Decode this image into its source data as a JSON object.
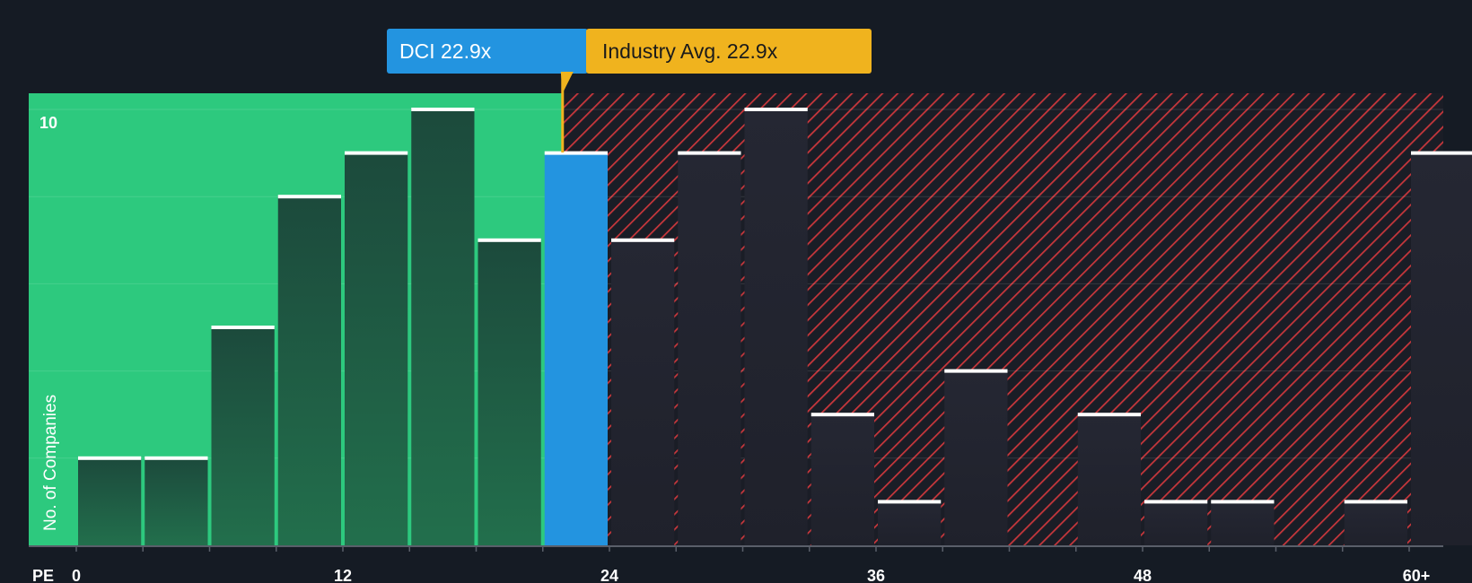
{
  "chart_data": {
    "type": "bar",
    "xlabel": "PE",
    "ylabel": "No. of Companies",
    "x_ticks": [
      "0",
      "12",
      "24",
      "36",
      "48",
      "60+"
    ],
    "y_ticks": [
      "10"
    ],
    "ylim": [
      0,
      10
    ],
    "bins": [
      {
        "start": 0,
        "end": 3,
        "count": 2
      },
      {
        "start": 3,
        "end": 6,
        "count": 2
      },
      {
        "start": 6,
        "end": 9,
        "count": 5
      },
      {
        "start": 9,
        "end": 12,
        "count": 8
      },
      {
        "start": 12,
        "end": 15,
        "count": 9
      },
      {
        "start": 15,
        "end": 18,
        "count": 10
      },
      {
        "start": 18,
        "end": 21,
        "count": 7
      },
      {
        "start": 21,
        "end": 24,
        "count": 9,
        "highlight": true
      },
      {
        "start": 24,
        "end": 27,
        "count": 7
      },
      {
        "start": 27,
        "end": 30,
        "count": 9
      },
      {
        "start": 30,
        "end": 33,
        "count": 10
      },
      {
        "start": 33,
        "end": 36,
        "count": 3
      },
      {
        "start": 36,
        "end": 39,
        "count": 1
      },
      {
        "start": 39,
        "end": 42,
        "count": 4
      },
      {
        "start": 42,
        "end": 45,
        "count": 0
      },
      {
        "start": 45,
        "end": 48,
        "count": 3
      },
      {
        "start": 48,
        "end": 51,
        "count": 1
      },
      {
        "start": 51,
        "end": 54,
        "count": 1
      },
      {
        "start": 54,
        "end": 57,
        "count": 0
      },
      {
        "start": 57,
        "end": 60,
        "count": 1
      },
      {
        "start": 60,
        "end": 63,
        "count": 9
      }
    ],
    "company": {
      "label": "DCI 22.9x",
      "value": 22.9
    },
    "industry_avg": {
      "label": "Industry Avg. 22.9x",
      "value": 22.9
    },
    "colors": {
      "background": "#151b24",
      "undervalued_zone": "#2dc97e",
      "overvalued_hatch": "#c8373c",
      "bar_in_zone": "#1f6b4a",
      "bar_in_hatch": "#222530",
      "company_bar": "#2394e0",
      "industry_callout": "#f0b31e",
      "bar_cap": "#ffffff"
    },
    "grid": true
  }
}
